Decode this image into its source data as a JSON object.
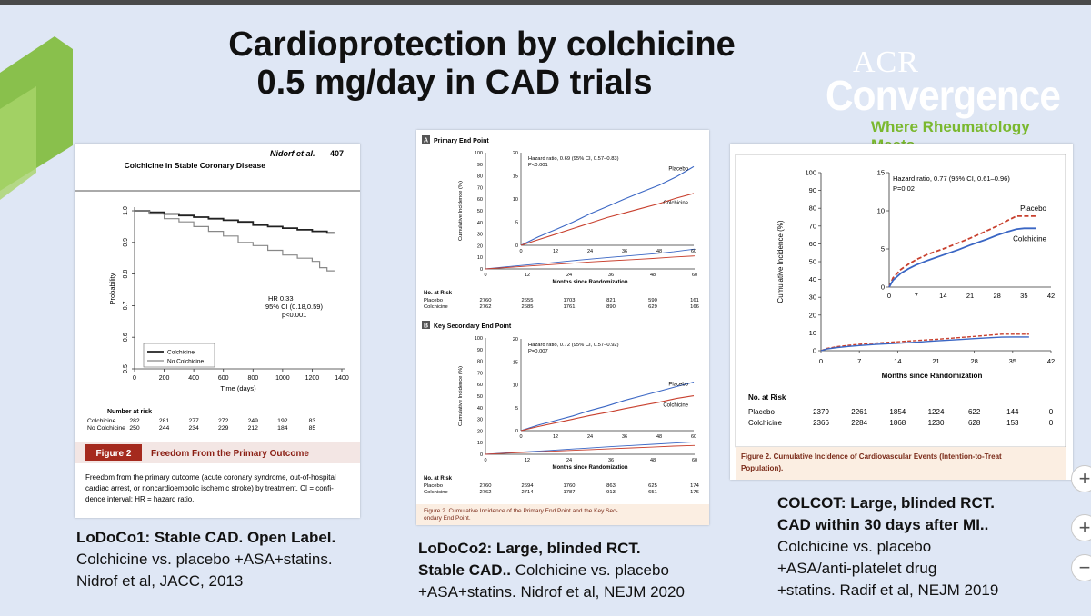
{
  "slide": {
    "title_line1": "Cardioprotection by colchicine",
    "title_line2": "0.5 mg/day in CAD trials",
    "logo": {
      "acr": "ACR",
      "convergence": "Convergence",
      "tagline": "Where Rheumatology Meets"
    },
    "accent_green": "#7ab82e",
    "caption1": {
      "line1": "LoDoCo1: Stable CAD. Open Label.",
      "line2": "Colchicine vs. placebo +ASA+statins.",
      "line3": "Nidrof et al, JACC, 2013"
    },
    "caption2": {
      "line1": "LoDoCo2: Large, blinded RCT.",
      "line2_bold": "Stable CAD..",
      "line2_rest": " Colchicine vs. placebo",
      "line3": "+ASA+statins. Nidrof et al, NEJM 2020"
    },
    "caption3": {
      "line1": "COLCOT: Large, blinded RCT.",
      "line2": "CAD within 30 days after MI..",
      "line3": "Colchicine  vs. placebo",
      "line4": "+ASA/anti-platelet drug",
      "line5": "+statins. Radif et al, NEJM 2019"
    },
    "side_buttons": [
      "+",
      "+",
      "−"
    ]
  },
  "chart_data": [
    {
      "type": "line",
      "header_author": "Nidorf et al.",
      "header_page": "407",
      "header_title": "Colchicine in Stable Coronary Disease",
      "ylabel": "Probability",
      "xlabel": "Time (days)",
      "xlim": [
        0,
        1400
      ],
      "ylim": [
        0.5,
        1.0
      ],
      "x_ticks": [
        "0",
        "200",
        "400",
        "600",
        "800",
        "1000",
        "1200",
        "1400"
      ],
      "y_ticks": [
        "0.5",
        "0.6",
        "0.7",
        "0.8",
        "0.9",
        "1.0"
      ],
      "series": [
        {
          "name": "Colchicine",
          "x": [
            0,
            100,
            200,
            300,
            400,
            500,
            600,
            700,
            800,
            900,
            1000,
            1100,
            1200,
            1300,
            1350
          ],
          "y": [
            1.0,
            0.995,
            0.99,
            0.985,
            0.98,
            0.975,
            0.97,
            0.965,
            0.955,
            0.95,
            0.945,
            0.94,
            0.935,
            0.93,
            0.93
          ],
          "color": "#222222"
        },
        {
          "name": "No Colchicine",
          "x": [
            0,
            100,
            200,
            300,
            400,
            500,
            600,
            700,
            800,
            900,
            1000,
            1100,
            1200,
            1250,
            1300,
            1350
          ],
          "y": [
            1.0,
            0.99,
            0.975,
            0.965,
            0.95,
            0.935,
            0.92,
            0.9,
            0.89,
            0.875,
            0.86,
            0.85,
            0.84,
            0.82,
            0.81,
            0.81
          ],
          "color": "#888888"
        }
      ],
      "annotation": {
        "line1": "HR 0.33",
        "line2": "95% CI (0.18,0.59)",
        "line3": "p<0.001"
      },
      "risk_table": {
        "title": "Number at risk",
        "rows": [
          {
            "label": "Colchicine",
            "values": [
              "282",
              "281",
              "277",
              "272",
              "249",
              "192",
              "83"
            ]
          },
          {
            "label": "No Colchicine",
            "values": [
              "250",
              "244",
              "234",
              "229",
              "212",
              "184",
              "85"
            ]
          }
        ]
      },
      "figure_label": "Figure 2",
      "figure_title": "Freedom From the Primary Outcome",
      "figure_caption": [
        "Freedom from the primary outcome (acute coronary syndrome, out-of-hospital",
        "cardiac arrest, or noncardioembolic ischemic stroke) by treatment. CI = confi-",
        "dence interval; HR = hazard ratio."
      ]
    },
    {
      "type": "line",
      "panels": [
        {
          "panel_letter": "A",
          "panel_title": "Primary End Point",
          "ylabel": "Cumulative Incidence (%)",
          "xlabel": "Months since Randomization",
          "xlim": [
            0,
            60
          ],
          "ylim": [
            0,
            100
          ],
          "x_ticks": [
            "0",
            "12",
            "24",
            "36",
            "48",
            "60"
          ],
          "y_ticks": [
            "0",
            "10",
            "20",
            "30",
            "40",
            "50",
            "60",
            "70",
            "80",
            "90",
            "100"
          ],
          "inset": {
            "ylim": [
              0,
              20
            ],
            "y_ticks": [
              "0",
              "5",
              "10",
              "15",
              "20"
            ],
            "hr": "Hazard ratio, 0.69 (95% CI, 0.57–0.83)",
            "p": "P<0.001"
          },
          "series": [
            {
              "name": "Placebo",
              "x": [
                0,
                6,
                12,
                18,
                24,
                30,
                36,
                42,
                48,
                54,
                60
              ],
              "y": [
                0,
                1.8,
                3.4,
                5.0,
                6.8,
                8.4,
                10.0,
                11.5,
                13.0,
                14.8,
                17.0
              ],
              "color": "#3a66c4"
            },
            {
              "name": "Colchicine",
              "x": [
                0,
                6,
                12,
                18,
                24,
                30,
                36,
                42,
                48,
                54,
                60
              ],
              "y": [
                0,
                1.2,
                2.4,
                3.6,
                4.8,
                6.0,
                7.0,
                8.0,
                9.0,
                10.2,
                11.2
              ],
              "color": "#c8402e"
            }
          ],
          "risk_table": {
            "title": "No. at Risk",
            "rows": [
              {
                "label": "Placebo",
                "values": [
                  "2760",
                  "2655",
                  "1703",
                  "821",
                  "590",
                  "161"
                ]
              },
              {
                "label": "Colchicine",
                "values": [
                  "2762",
                  "2685",
                  "1761",
                  "890",
                  "629",
                  "166"
                ]
              }
            ]
          }
        },
        {
          "panel_letter": "B",
          "panel_title": "Key Secondary End Point",
          "ylabel": "Cumulative Incidence (%)",
          "xlabel": "Months since Randomization",
          "xlim": [
            0,
            60
          ],
          "ylim": [
            0,
            100
          ],
          "x_ticks": [
            "0",
            "12",
            "24",
            "36",
            "48",
            "60"
          ],
          "y_ticks": [
            "0",
            "10",
            "20",
            "30",
            "40",
            "50",
            "60",
            "70",
            "80",
            "90",
            "100"
          ],
          "inset": {
            "ylim": [
              0,
              20
            ],
            "y_ticks": [
              "0",
              "5",
              "10",
              "15",
              "20"
            ],
            "hr": "Hazard ratio, 0.72 (95% CI, 0.57–0.92)",
            "p": "P=0.007"
          },
          "series": [
            {
              "name": "Placebo",
              "x": [
                0,
                6,
                12,
                18,
                24,
                30,
                36,
                42,
                48,
                54,
                60
              ],
              "y": [
                0,
                1.2,
                2.2,
                3.2,
                4.4,
                5.4,
                6.6,
                7.6,
                8.6,
                9.6,
                10.6
              ],
              "color": "#3a66c4"
            },
            {
              "name": "Colchicine",
              "x": [
                0,
                6,
                12,
                18,
                24,
                30,
                36,
                42,
                48,
                54,
                60
              ],
              "y": [
                0,
                0.9,
                1.7,
                2.5,
                3.3,
                4.0,
                4.8,
                5.5,
                6.2,
                7.0,
                7.6
              ],
              "color": "#c8402e"
            }
          ],
          "risk_table": {
            "title": "No. at Risk",
            "rows": [
              {
                "label": "Placebo",
                "values": [
                  "2760",
                  "2694",
                  "1760",
                  "863",
                  "625",
                  "174"
                ]
              },
              {
                "label": "Colchicine",
                "values": [
                  "2762",
                  "2714",
                  "1787",
                  "913",
                  "651",
                  "176"
                ]
              }
            ]
          }
        }
      ],
      "figure_caption": [
        "Figure 2. Cumulative Incidence of the Primary End Point and the Key Sec-",
        "ondary End Point."
      ]
    },
    {
      "type": "line",
      "ylabel": "Cumulative Incidence (%)",
      "xlabel": "Months since Randomization",
      "xlim": [
        0,
        42
      ],
      "ylim": [
        0,
        100
      ],
      "x_ticks": [
        "0",
        "7",
        "14",
        "21",
        "28",
        "35",
        "42"
      ],
      "y_ticks": [
        "0",
        "10",
        "20",
        "30",
        "40",
        "50",
        "60",
        "70",
        "80",
        "90",
        "100"
      ],
      "inset": {
        "ylim": [
          0,
          15
        ],
        "y_ticks": [
          "0",
          "5",
          "10",
          "15"
        ],
        "hr": "Hazard ratio, 0.77 (95% CI, 0.61–0.96)",
        "p": "P=0.02"
      },
      "series": [
        {
          "name": "Placebo",
          "x": [
            0,
            1,
            3,
            5,
            7,
            10,
            14,
            18,
            21,
            25,
            28,
            31,
            33,
            35,
            38
          ],
          "y": [
            0,
            1.2,
            2.3,
            3.0,
            3.6,
            4.3,
            5.0,
            5.8,
            6.4,
            7.3,
            8.0,
            8.8,
            9.3,
            9.3,
            9.3
          ],
          "color": "#c8402e"
        },
        {
          "name": "Colchicine",
          "x": [
            0,
            1,
            3,
            5,
            7,
            10,
            14,
            18,
            21,
            25,
            28,
            31,
            33,
            35,
            38
          ],
          "y": [
            0,
            0.9,
            1.8,
            2.4,
            2.9,
            3.5,
            4.2,
            4.9,
            5.5,
            6.2,
            6.8,
            7.3,
            7.6,
            7.7,
            7.7
          ],
          "color": "#3a66c4"
        }
      ],
      "risk_table": {
        "title": "No. at Risk",
        "rows": [
          {
            "label": "Placebo",
            "values": [
              "2379",
              "2261",
              "1854",
              "1224",
              "622",
              "144",
              "0"
            ]
          },
          {
            "label": "Colchicine",
            "values": [
              "2366",
              "2284",
              "1868",
              "1230",
              "628",
              "153",
              "0"
            ]
          }
        ]
      },
      "figure_caption": [
        "Figure 2. Cumulative Incidence of Cardiovascular Events (Intention-to-Treat",
        "Population)."
      ]
    }
  ]
}
